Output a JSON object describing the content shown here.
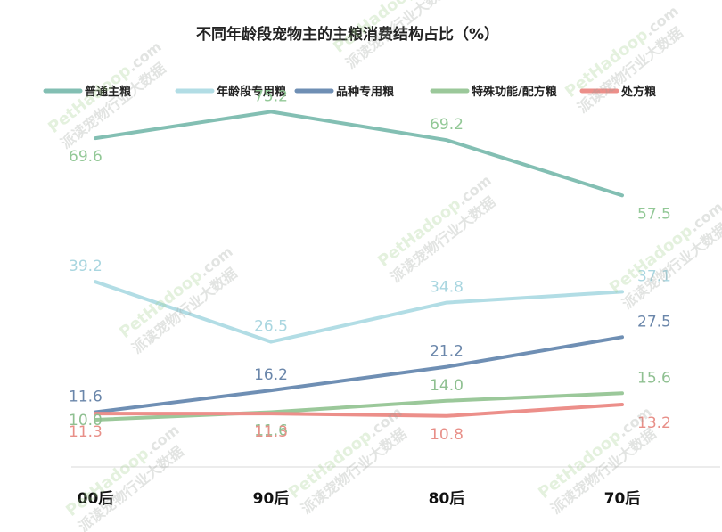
{
  "chart_data": {
    "type": "line",
    "title": "不同年龄段宠物主的主粮消费结构占比（%）",
    "categories": [
      "00后",
      "90后",
      "80后",
      "70后"
    ],
    "ylim": [
      0,
      80
    ],
    "grid": false,
    "legend_position": "top",
    "series": [
      {
        "name": "普通主粮",
        "values": [
          69.6,
          75.2,
          69.2,
          57.5
        ],
        "color": "#83bfb3",
        "label_color": "#92c896",
        "label_offsets": [
          "below",
          "above",
          "above",
          "below"
        ]
      },
      {
        "name": "年龄段专用粮",
        "values": [
          39.2,
          26.5,
          34.8,
          37.1
        ],
        "color": "#b2dde5",
        "label_color": "#a9d6e0",
        "label_offsets": [
          "above",
          "above",
          "above",
          "above"
        ]
      },
      {
        "name": "品种专用粮",
        "values": [
          11.6,
          16.2,
          21.2,
          27.5
        ],
        "color": "#6f8fb4",
        "label_color": "#6a86aa",
        "label_offsets": [
          "above",
          "above",
          "above",
          "above"
        ]
      },
      {
        "name": "特殊功能/配方粮",
        "values": [
          10.0,
          11.6,
          14.0,
          15.6
        ],
        "color": "#9bc89a",
        "label_color": "#8fc091",
        "label_offsets": [
          "on",
          "below",
          "above",
          "above"
        ]
      },
      {
        "name": "处方粮",
        "values": [
          11.3,
          11.3,
          10.8,
          13.2
        ],
        "color": "#ec8f8a",
        "label_color": "#e88f88",
        "label_offsets": [
          "below",
          "below",
          "below",
          "below"
        ]
      }
    ]
  },
  "watermark": {
    "brand": "PetHadoop",
    "domain": ".com",
    "slogan": "派读宠物行业大数据"
  }
}
